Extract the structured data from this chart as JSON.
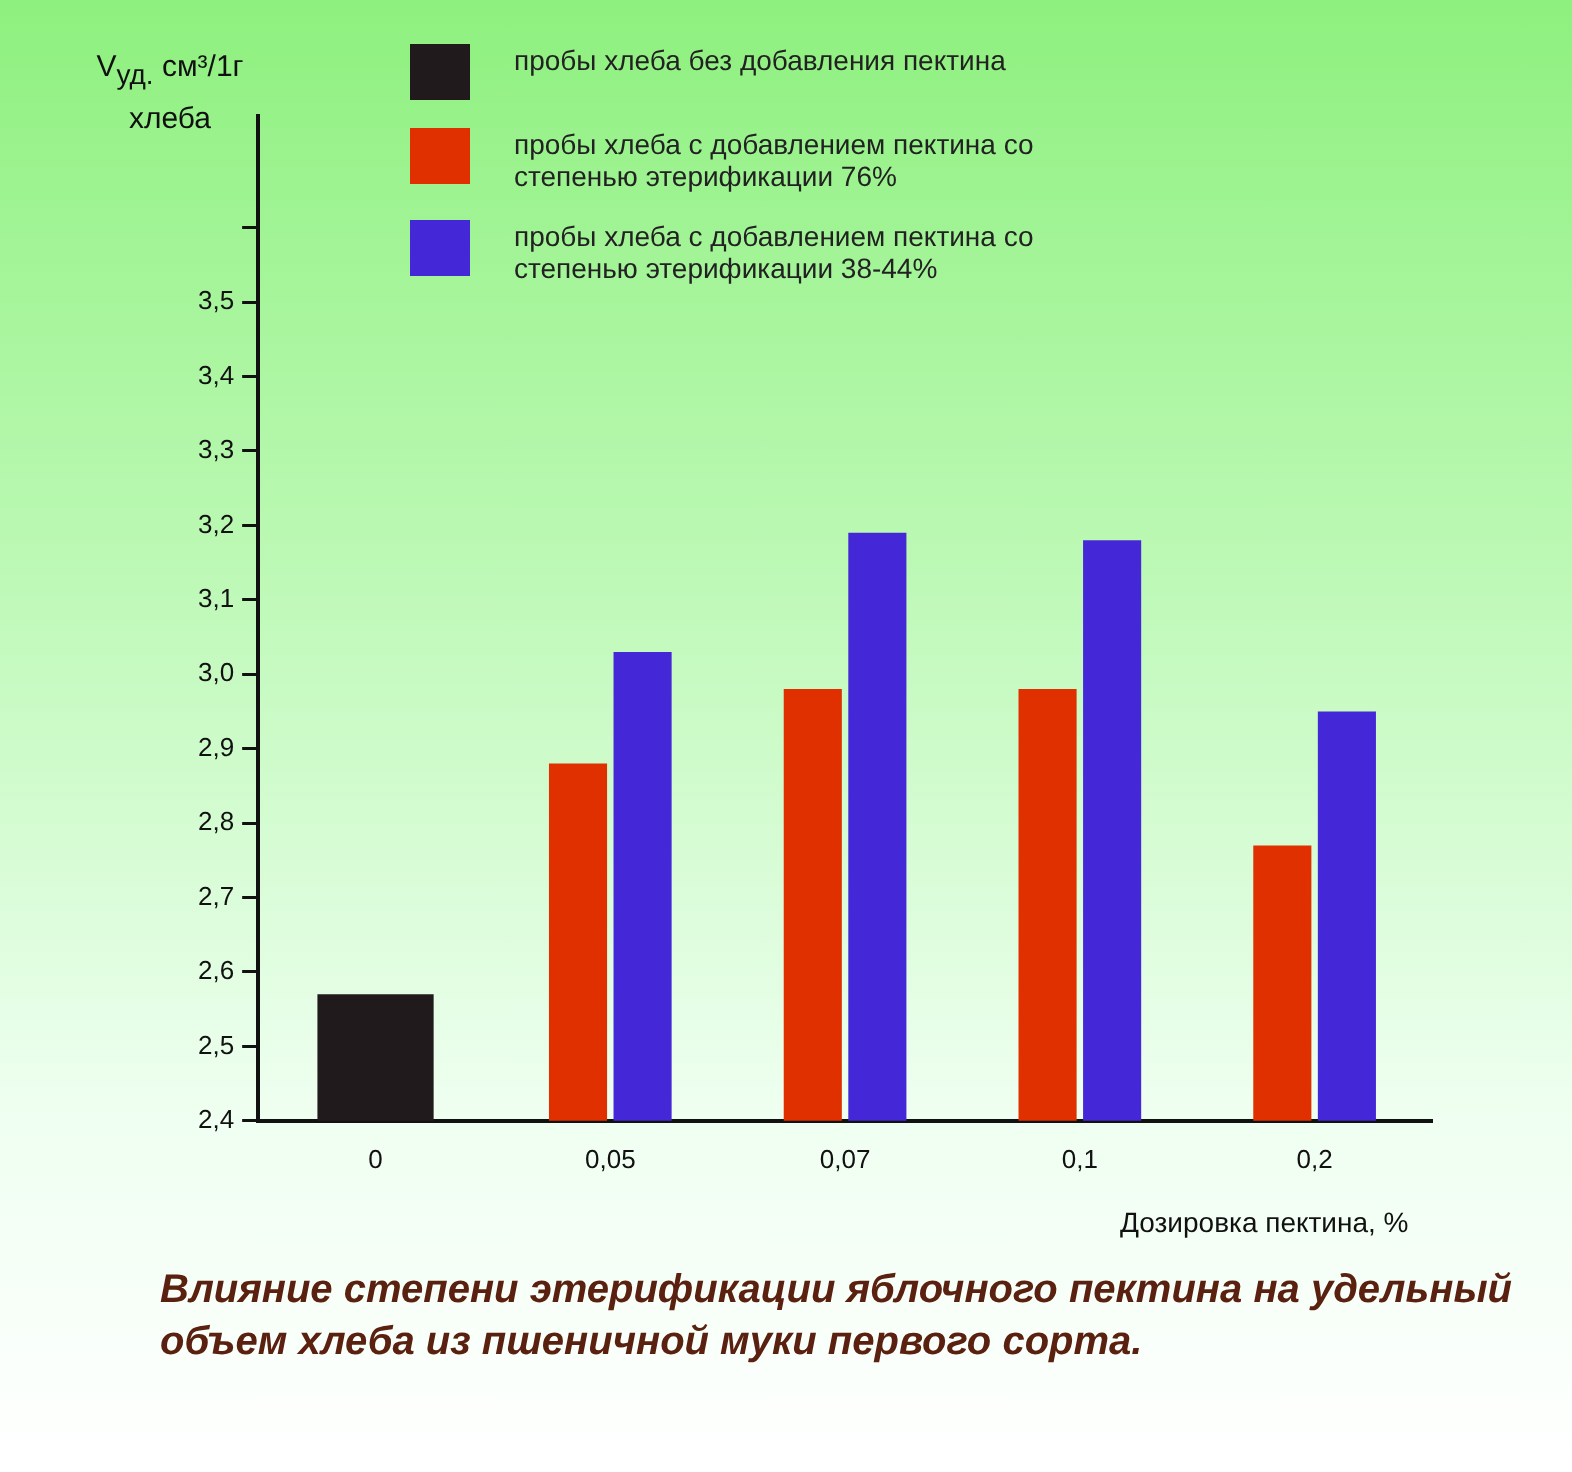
{
  "chart_data": {
    "type": "bar",
    "title": "Влияние степени этерификации яблочного пектина на удельный объем хлеба из пшеничной муки первого сорта.",
    "ylabel": "V$_{уд.}$ см³/1г хлеба",
    "xlabel": "Дозировка пектина, %",
    "categories": [
      "0",
      "0,05",
      "0,07",
      "0,1",
      "0,2"
    ],
    "series": [
      {
        "name": "пробы хлеба без добавления пектина",
        "color": "#201a1c",
        "values": [
          2.57,
          null,
          null,
          null,
          null
        ]
      },
      {
        "name": "пробы хлеба с добавлением пектина со степенью этерификации 76%",
        "color": "#e03000",
        "values": [
          null,
          2.88,
          2.98,
          2.98,
          2.77
        ]
      },
      {
        "name": "пробы хлеба с добавлением пектина со степенью этерификации 38-44%",
        "color": "#4428d8",
        "values": [
          null,
          3.03,
          3.19,
          3.18,
          2.95
        ]
      }
    ],
    "ylim": [
      2.4,
      3.75
    ],
    "yticks": [
      {
        "value": 2.4,
        "label": "2,4"
      },
      {
        "value": 2.5,
        "label": "2,5"
      },
      {
        "value": 2.6,
        "label": "2,6"
      },
      {
        "value": 2.7,
        "label": "2,7"
      },
      {
        "value": 2.8,
        "label": "2,8"
      },
      {
        "value": 2.9,
        "label": "2,9"
      },
      {
        "value": 3.0,
        "label": "3,0"
      },
      {
        "value": 3.1,
        "label": "3,1"
      },
      {
        "value": 3.2,
        "label": "3,2"
      },
      {
        "value": 3.3,
        "label": "3,3"
      },
      {
        "value": 3.4,
        "label": "3,4"
      },
      {
        "value": 3.5,
        "label": "3,5"
      },
      {
        "value": 3.6,
        "label": null
      }
    ],
    "grid": false,
    "legend": "top"
  }
}
